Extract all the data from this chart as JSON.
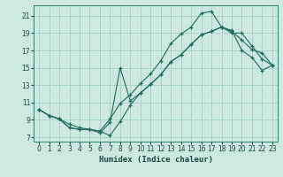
{
  "xlabel": "Humidex (Indice chaleur)",
  "bg_color": "#cce8df",
  "grid_color": "#aad4c8",
  "line_color": "#1e6b5e",
  "xlim": [
    -0.5,
    23.5
  ],
  "ylim": [
    6.5,
    22.2
  ],
  "xticks": [
    0,
    1,
    2,
    3,
    4,
    5,
    6,
    7,
    8,
    9,
    10,
    11,
    12,
    13,
    14,
    15,
    16,
    17,
    18,
    19,
    20,
    21,
    22,
    23
  ],
  "yticks": [
    7,
    9,
    11,
    13,
    15,
    17,
    19,
    21
  ],
  "line1_x": [
    0,
    1,
    2,
    3,
    4,
    5,
    6,
    7,
    8,
    9,
    10,
    11,
    12,
    13,
    14,
    15,
    16,
    17,
    18,
    19,
    20,
    21,
    22,
    23
  ],
  "line1_y": [
    10.2,
    9.5,
    9.1,
    8.1,
    7.9,
    7.9,
    7.7,
    7.2,
    8.8,
    10.7,
    12.1,
    13.1,
    14.2,
    15.7,
    16.5,
    17.7,
    18.8,
    19.2,
    19.7,
    19.2,
    18.2,
    17.1,
    16.7,
    15.3
  ],
  "line2_x": [
    0,
    1,
    2,
    3,
    4,
    5,
    6,
    7,
    8,
    9,
    10,
    11,
    12,
    13,
    14,
    15,
    16,
    17,
    18,
    19,
    20,
    21,
    22,
    23
  ],
  "line2_y": [
    10.2,
    9.5,
    9.1,
    8.1,
    7.9,
    7.9,
    7.7,
    9.1,
    10.9,
    11.9,
    13.2,
    14.3,
    15.8,
    17.8,
    18.9,
    19.7,
    21.3,
    21.5,
    19.7,
    19.3,
    17.0,
    16.2,
    14.7,
    15.3
  ],
  "line3_x": [
    0,
    1,
    2,
    3,
    4,
    5,
    6,
    7,
    8,
    9,
    10,
    11,
    12,
    13,
    14,
    15,
    16,
    17,
    18,
    19,
    20,
    21,
    22,
    23
  ],
  "line3_y": [
    10.2,
    9.5,
    9.1,
    8.5,
    8.1,
    7.9,
    7.5,
    8.7,
    15.0,
    11.2,
    12.1,
    13.1,
    14.2,
    15.7,
    16.5,
    17.7,
    18.8,
    19.2,
    19.7,
    19.0,
    19.0,
    17.5,
    16.0,
    15.3
  ]
}
